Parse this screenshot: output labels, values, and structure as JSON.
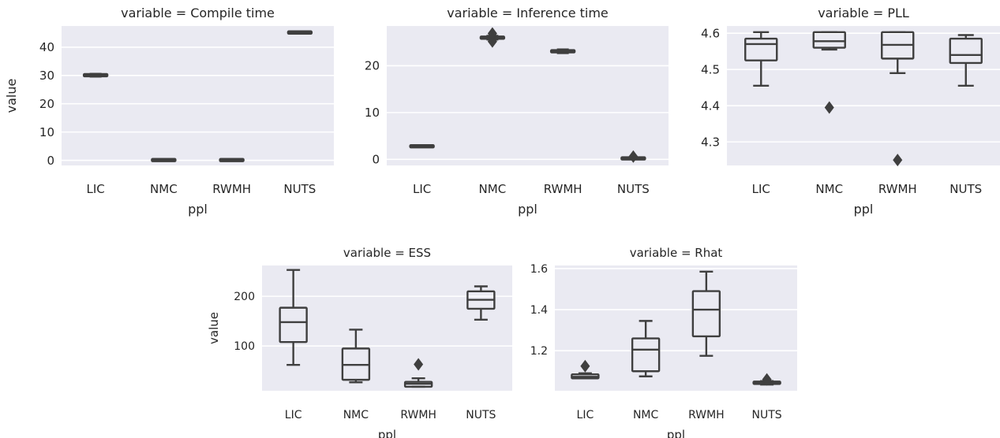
{
  "chart_data": [
    {
      "type": "box",
      "title": "variable = Compile time",
      "xlabel": "ppl",
      "ylabel": "value",
      "categories": [
        "LIC",
        "NMC",
        "RWMH",
        "NUTS"
      ],
      "yticks": [
        0,
        10,
        20,
        30,
        40
      ],
      "ylim": [
        -1.8,
        47.5
      ],
      "grid": true,
      "boxes": [
        {
          "category": "LIC",
          "whisker_low": 29.6,
          "q1": 29.8,
          "median": 30.1,
          "q3": 30.4,
          "whisker_high": 30.6,
          "outliers": []
        },
        {
          "category": "NMC",
          "whisker_low": 0.0,
          "q1": 0.05,
          "median": 0.1,
          "q3": 0.15,
          "whisker_high": 0.2,
          "outliers": []
        },
        {
          "category": "RWMH",
          "whisker_low": 0.0,
          "q1": 0.05,
          "median": 0.1,
          "q3": 0.15,
          "whisker_high": 0.2,
          "outliers": []
        },
        {
          "category": "NUTS",
          "whisker_low": 45.0,
          "q1": 45.1,
          "median": 45.2,
          "q3": 45.3,
          "whisker_high": 45.4,
          "outliers": []
        }
      ]
    },
    {
      "type": "box",
      "title": "variable = Inference time",
      "xlabel": "ppl",
      "ylabel": "",
      "categories": [
        "LIC",
        "NMC",
        "RWMH",
        "NUTS"
      ],
      "yticks": [
        0,
        10,
        20
      ],
      "ylim": [
        -1.3,
        28.5
      ],
      "grid": true,
      "boxes": [
        {
          "category": "LIC",
          "whisker_low": 2.7,
          "q1": 2.75,
          "median": 2.8,
          "q3": 2.85,
          "whisker_high": 2.9,
          "outliers": []
        },
        {
          "category": "NMC",
          "whisker_low": 25.6,
          "q1": 25.8,
          "median": 26.0,
          "q3": 26.2,
          "whisker_high": 26.4,
          "outliers": [
            25.2,
            26.9
          ]
        },
        {
          "category": "RWMH",
          "whisker_low": 22.7,
          "q1": 22.9,
          "median": 23.1,
          "q3": 23.3,
          "whisker_high": 23.5,
          "outliers": []
        },
        {
          "category": "NUTS",
          "whisker_low": 0.1,
          "q1": 0.15,
          "median": 0.2,
          "q3": 0.25,
          "whisker_high": 0.3,
          "outliers": [
            0.6
          ]
        }
      ]
    },
    {
      "type": "box",
      "title": "variable = PLL",
      "xlabel": "ppl",
      "ylabel": "",
      "categories": [
        "LIC",
        "NMC",
        "RWMH",
        "NUTS"
      ],
      "yticks": [
        4.3,
        4.4,
        4.5,
        4.6
      ],
      "ylim": [
        4.235,
        4.62
      ],
      "grid": true,
      "boxes": [
        {
          "category": "LIC",
          "whisker_low": 4.455,
          "q1": 4.525,
          "median": 4.57,
          "q3": 4.585,
          "whisker_high": 4.603,
          "outliers": []
        },
        {
          "category": "NMC",
          "whisker_low": 4.555,
          "q1": 4.56,
          "median": 4.578,
          "q3": 4.603,
          "whisker_high": 4.603,
          "outliers": [
            4.395
          ]
        },
        {
          "category": "RWMH",
          "whisker_low": 4.49,
          "q1": 4.53,
          "median": 4.568,
          "q3": 4.603,
          "whisker_high": 4.603,
          "outliers": [
            4.25
          ]
        },
        {
          "category": "NUTS",
          "whisker_low": 4.455,
          "q1": 4.518,
          "median": 4.54,
          "q3": 4.585,
          "whisker_high": 4.595,
          "outliers": []
        }
      ]
    },
    {
      "type": "box",
      "title": "variable = ESS",
      "xlabel": "ppl",
      "ylabel": "value",
      "categories": [
        "LIC",
        "NMC",
        "RWMH",
        "NUTS"
      ],
      "yticks": [
        100,
        200
      ],
      "ylim": [
        10,
        262
      ],
      "grid": true,
      "boxes": [
        {
          "category": "LIC",
          "whisker_low": 62,
          "q1": 108,
          "median": 148,
          "q3": 177,
          "whisker_high": 253,
          "outliers": []
        },
        {
          "category": "NMC",
          "whisker_low": 27,
          "q1": 32,
          "median": 62,
          "q3": 95,
          "whisker_high": 133,
          "outliers": []
        },
        {
          "category": "RWMH",
          "whisker_low": 18,
          "q1": 18,
          "median": 24,
          "q3": 28,
          "whisker_high": 35,
          "outliers": [
            63
          ]
        },
        {
          "category": "NUTS",
          "whisker_low": 153,
          "q1": 175,
          "median": 193,
          "q3": 210,
          "whisker_high": 220,
          "outliers": []
        }
      ]
    },
    {
      "type": "box",
      "title": "variable = Rhat",
      "xlabel": "ppl",
      "ylabel": "",
      "categories": [
        "LIC",
        "NMC",
        "RWMH",
        "NUTS"
      ],
      "yticks": [
        1.2,
        1.4,
        1.6
      ],
      "ylim": [
        1.005,
        1.615
      ],
      "grid": true,
      "boxes": [
        {
          "category": "LIC",
          "whisker_low": 1.065,
          "q1": 1.065,
          "median": 1.073,
          "q3": 1.085,
          "whisker_high": 1.09,
          "outliers": [
            1.125
          ]
        },
        {
          "category": "NMC",
          "whisker_low": 1.075,
          "q1": 1.1,
          "median": 1.205,
          "q3": 1.26,
          "whisker_high": 1.345,
          "outliers": []
        },
        {
          "category": "RWMH",
          "whisker_low": 1.175,
          "q1": 1.27,
          "median": 1.4,
          "q3": 1.49,
          "whisker_high": 1.585,
          "outliers": []
        },
        {
          "category": "NUTS",
          "whisker_low": 1.035,
          "q1": 1.038,
          "median": 1.045,
          "q3": 1.05,
          "whisker_high": 1.052,
          "outliers": [
            1.06
          ]
        }
      ]
    }
  ],
  "colors": {
    "LIC": "#4c72b0",
    "NMC": "#dd8452",
    "RWMH": "#55a868",
    "NUTS": "#c44e52",
    "panel_bg": "#eaeaf2",
    "grid": "#ffffff",
    "edge": "#3f3f3f"
  }
}
